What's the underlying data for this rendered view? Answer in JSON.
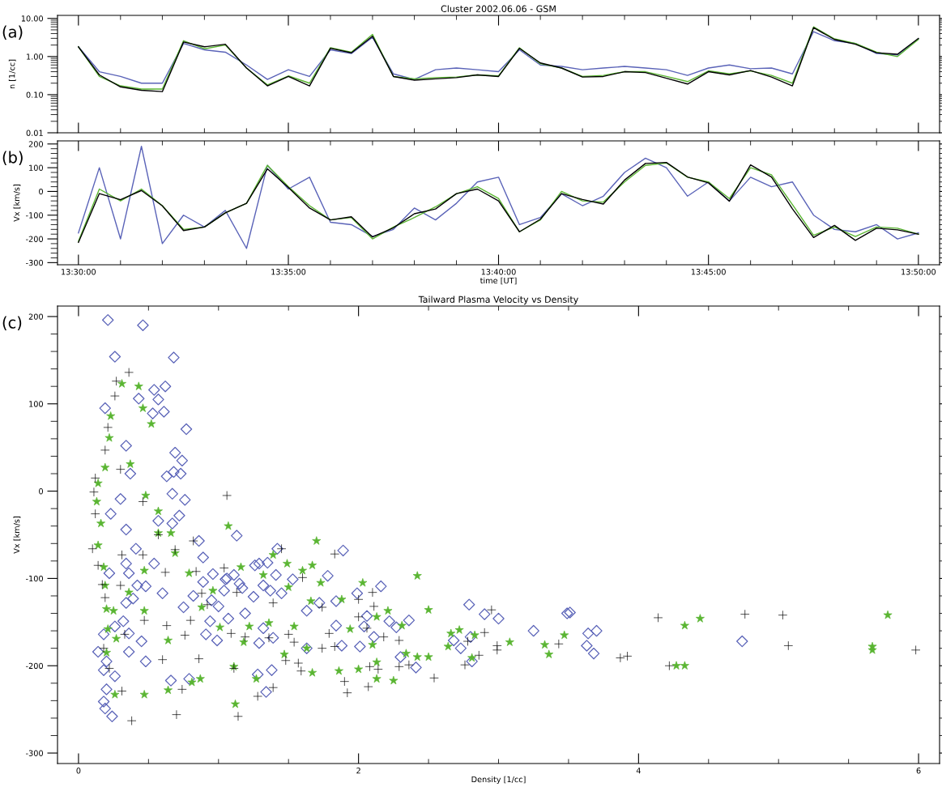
{
  "chart_data": [
    {
      "type": "line",
      "title": "Cluster 2002.06.06 - GSM",
      "ylabel": "n [1/cc]",
      "annotations": [
        "(a)"
      ],
      "log": "y",
      "tick_labels": "y",
      "x": [
        13.5,
        13.5083,
        13.5167,
        13.525,
        13.5333,
        13.5417,
        13.55,
        13.5583,
        13.5667,
        13.575,
        13.5833,
        13.5917,
        13.6,
        13.6083,
        13.6167,
        13.625,
        13.6333,
        13.6417,
        13.65,
        13.6583,
        13.6667,
        13.675,
        13.6833,
        13.6917,
        13.7,
        13.7083,
        13.7167,
        13.725,
        13.7333,
        13.7417,
        13.75,
        13.7583,
        13.7667,
        13.775,
        13.7833,
        13.7917,
        13.8,
        13.8083,
        13.8167,
        13.825,
        13.8333
      ],
      "series": [
        {
          "color": "#5a63b8",
          "values": [
            1.8,
            0.4,
            0.3,
            0.2,
            0.2,
            2.2,
            1.5,
            1.3,
            0.6,
            0.25,
            0.45,
            0.3,
            1.5,
            1.2,
            3.2,
            0.35,
            0.25,
            0.45,
            0.5,
            0.45,
            0.4,
            1.5,
            0.6,
            0.55,
            0.45,
            0.5,
            0.55,
            0.5,
            0.45,
            0.32,
            0.5,
            0.6,
            0.48,
            0.5,
            0.35,
            4.5,
            2.6,
            2.2,
            1.2,
            1.1,
            2.9
          ]
        },
        {
          "color": "#5ab532",
          "values": [
            1.8,
            0.3,
            0.17,
            0.14,
            0.14,
            2.6,
            1.6,
            2.0,
            0.5,
            0.18,
            0.31,
            0.2,
            1.7,
            1.3,
            3.8,
            0.3,
            0.26,
            0.28,
            0.29,
            0.33,
            0.31,
            1.7,
            0.65,
            0.5,
            0.3,
            0.32,
            0.4,
            0.4,
            0.3,
            0.22,
            0.42,
            0.35,
            0.42,
            0.32,
            0.2,
            6.0,
            2.9,
            2.2,
            1.3,
            1.0,
            2.8
          ]
        },
        {
          "color": "#000000",
          "values": [
            1.8,
            0.33,
            0.16,
            0.13,
            0.12,
            2.4,
            1.8,
            2.1,
            0.5,
            0.17,
            0.3,
            0.17,
            1.65,
            1.25,
            3.4,
            0.3,
            0.24,
            0.26,
            0.28,
            0.33,
            0.3,
            1.64,
            0.68,
            0.5,
            0.29,
            0.3,
            0.4,
            0.38,
            0.27,
            0.19,
            0.4,
            0.33,
            0.43,
            0.29,
            0.17,
            5.7,
            2.8,
            2.1,
            1.26,
            1.15,
            3.0
          ]
        }
      ],
      "xlim": [
        13.4917,
        13.8417
      ],
      "ylim": [
        0.01,
        12
      ],
      "xticks": [
        13.5,
        {
          "value": 13.5167,
          "label": null
        },
        {
          "value": 13.5333,
          "label": null
        },
        {
          "value": 13.55,
          "label": null
        },
        {
          "value": 13.5667,
          "label": null
        },
        13.5833,
        {
          "value": 13.6,
          "label": null
        },
        {
          "value": 13.6167,
          "label": null
        },
        {
          "value": 13.6333,
          "label": null
        },
        {
          "value": 13.65,
          "label": null
        },
        13.6667,
        {
          "value": 13.6833,
          "label": null
        },
        {
          "value": 13.7,
          "label": null
        },
        {
          "value": 13.7167,
          "label": null
        },
        {
          "value": 13.7333,
          "label": null
        },
        13.75,
        {
          "value": 13.7667,
          "label": null
        },
        {
          "value": 13.7833,
          "label": null
        },
        {
          "value": 13.8,
          "label": null
        },
        {
          "value": 13.8167,
          "label": null
        },
        13.8333
      ],
      "yticks": [
        {
          "value": 0.01,
          "label": "0.01"
        },
        {
          "value": 0.1,
          "label": "0.10"
        },
        {
          "value": 1,
          "label": "1.00"
        },
        {
          "value": 10,
          "label": "10.00"
        }
      ]
    },
    {
      "type": "line",
      "xlabel": "time [UT]",
      "ylabel": "Vx [km/s]",
      "annotations": [
        "(b)"
      ],
      "x": [
        13.5,
        13.5083,
        13.5167,
        13.525,
        13.5333,
        13.5417,
        13.55,
        13.5583,
        13.5667,
        13.575,
        13.5833,
        13.5917,
        13.6,
        13.6083,
        13.6167,
        13.625,
        13.6333,
        13.6417,
        13.65,
        13.6583,
        13.6667,
        13.675,
        13.6833,
        13.6917,
        13.7,
        13.7083,
        13.7167,
        13.725,
        13.7333,
        13.7417,
        13.75,
        13.7583,
        13.7667,
        13.775,
        13.7833,
        13.7917,
        13.8,
        13.8083,
        13.8167,
        13.825,
        13.8333
      ],
      "series": [
        {
          "color": "#5a63b8",
          "values": [
            -175,
            100,
            -200,
            190,
            -220,
            -100,
            -150,
            -80,
            -240,
            110,
            10,
            60,
            -130,
            -140,
            -190,
            -160,
            -70,
            -120,
            -50,
            40,
            60,
            -140,
            -110,
            -10,
            -60,
            -20,
            80,
            140,
            100,
            -20,
            40,
            -40,
            60,
            20,
            40,
            -100,
            -160,
            -170,
            -140,
            -200,
            -175
          ]
        },
        {
          "color": "#5ab532",
          "values": [
            -210,
            10,
            -40,
            10,
            -60,
            -160,
            -150,
            -90,
            -50,
            110,
            20,
            -60,
            -120,
            -110,
            -200,
            -150,
            -110,
            -65,
            -10,
            20,
            -30,
            -170,
            -120,
            0,
            -40,
            -45,
            40,
            110,
            120,
            60,
            40,
            -30,
            100,
            70,
            -55,
            -185,
            -150,
            -190,
            -150,
            -155,
            -180
          ]
        },
        {
          "color": "#000000",
          "values": [
            -215,
            -9,
            -35,
            4,
            -61,
            -165,
            -150,
            -90,
            -50,
            95,
            17,
            -70,
            -120,
            -107,
            -192,
            -153,
            -94,
            -74,
            -9,
            10,
            -40,
            -170,
            -117,
            -9,
            -34,
            -53,
            48,
            118,
            122,
            61,
            36,
            -41,
            112,
            61,
            -73,
            -194,
            -143,
            -206,
            -155,
            -162,
            -180
          ]
        }
      ],
      "xlim": [
        13.4917,
        13.8417
      ],
      "ylim": [
        -309,
        213
      ],
      "xticks": [
        {
          "value": 13.5,
          "label": "13:30:00"
        },
        {
          "value": 13.5167,
          "label": null
        },
        {
          "value": 13.5333,
          "label": null
        },
        {
          "value": 13.55,
          "label": null
        },
        {
          "value": 13.5667,
          "label": null
        },
        {
          "value": 13.5833,
          "label": "13:35:00"
        },
        {
          "value": 13.6,
          "label": null
        },
        {
          "value": 13.6167,
          "label": null
        },
        {
          "value": 13.6333,
          "label": null
        },
        {
          "value": 13.65,
          "label": null
        },
        {
          "value": 13.6667,
          "label": "13:40:00"
        },
        {
          "value": 13.6833,
          "label": null
        },
        {
          "value": 13.7,
          "label": null
        },
        {
          "value": 13.7167,
          "label": null
        },
        {
          "value": 13.7333,
          "label": null
        },
        {
          "value": 13.75,
          "label": "13:45:00"
        },
        {
          "value": 13.7667,
          "label": null
        },
        {
          "value": 13.7833,
          "label": null
        },
        {
          "value": 13.8,
          "label": null
        },
        {
          "value": 13.8167,
          "label": null
        },
        {
          "value": 13.8333,
          "label": "13:50:00"
        }
      ],
      "yticks": [
        -300,
        -200,
        -100,
        0,
        100,
        200
      ]
    },
    {
      "type": "scatter",
      "title": "Tailward Plasma Velocity vs Density",
      "xlabel": "Density [1/cc]",
      "ylabel": "Vx [km/s]",
      "annotations": [
        "(c)"
      ],
      "xlim": [
        -0.15,
        6.15
      ],
      "ylim": [
        -312,
        212
      ],
      "xticks": [
        0,
        2,
        4,
        6
      ],
      "yticks": [
        -300,
        -200,
        -100,
        0,
        100,
        200
      ],
      "series": [
        {
          "color": "#5a63b8",
          "marker": "diamond",
          "x": [
            0.21,
            0.46,
            0.26,
            0.68,
            0.19,
            0.62,
            0.54,
            0.57,
            0.61,
            0.77,
            0.53,
            0.43,
            0.69,
            0.74,
            0.73,
            0.68,
            0.63,
            0.67,
            0.76,
            0.72,
            0.67,
            0.57,
            0.34,
            0.37,
            0.3,
            0.23,
            0.34,
            0.41,
            0.54,
            0.34,
            0.22,
            0.36,
            0.42,
            0.48,
            0.6,
            0.34,
            0.39,
            0.32,
            0.26,
            0.18,
            0.36,
            0.14,
            0.2,
            0.18,
            0.26,
            0.2,
            0.18,
            0.19,
            0.24,
            0.36,
            0.45,
            0.48,
            0.66,
            0.79,
            0.86,
            1.13,
            0.89,
            0.96,
            0.89,
            1.05,
            1.06,
            1.11,
            1.04,
            0.82,
            0.75,
            0.95,
            1.0,
            1.07,
            0.94,
            0.91,
            0.99,
            1.15,
            1.17,
            1.25,
            1.19,
            1.26,
            1.29,
            1.35,
            1.42,
            1.41,
            1.32,
            1.37,
            1.45,
            1.53,
            1.32,
            1.29,
            1.39,
            1.28,
            1.38,
            1.34,
            1.63,
            1.63,
            1.72,
            1.78,
            1.84,
            1.89,
            1.84,
            1.88,
            1.99,
            2.06,
            2.04,
            2.01,
            2.11,
            2.16,
            2.22,
            2.27,
            2.36,
            2.3,
            2.41,
            2.79,
            2.9,
            3.0,
            2.68,
            2.73,
            2.8,
            2.81,
            3.25,
            3.49,
            3.51,
            3.64,
            3.7,
            3.63,
            3.68,
            4.74
          ],
          "values": [
            196,
            190,
            154,
            153,
            95,
            120,
            116,
            105,
            91,
            71,
            89,
            106,
            44,
            35,
            20,
            22,
            17,
            -3,
            -10,
            -28,
            -37,
            -34,
            52,
            20,
            -9,
            -26,
            -44,
            -66,
            -83,
            -83,
            -94,
            -94,
            -108,
            -109,
            -117,
            -128,
            -123,
            -149,
            -155,
            -164,
            -163,
            -184,
            -195,
            -205,
            -212,
            -227,
            -241,
            -249,
            -258,
            -184,
            -172,
            -195,
            -217,
            -215,
            -57,
            -51,
            -76,
            -95,
            -104,
            -101,
            -100,
            -96,
            -114,
            -120,
            -133,
            -125,
            -132,
            -146,
            -149,
            -164,
            -171,
            -106,
            -111,
            -121,
            -140,
            -85,
            -83,
            -82,
            -66,
            -96,
            -108,
            -114,
            -117,
            -101,
            -157,
            -174,
            -168,
            -210,
            -205,
            -230,
            -137,
            -180,
            -128,
            -97,
            -126,
            -68,
            -154,
            -177,
            -117,
            -143,
            -155,
            -178,
            -167,
            -109,
            -149,
            -156,
            -148,
            -190,
            -202,
            -130,
            -141,
            -146,
            -171,
            -180,
            -167,
            -195,
            -160,
            -140,
            -139,
            -163,
            -160,
            -177,
            -186,
            -172
          ]
        },
        {
          "color": "#5ab532",
          "marker": "star",
          "x": [
            0.31,
            0.43,
            0.23,
            0.22,
            0.19,
            0.14,
            0.13,
            0.16,
            0.14,
            0.18,
            0.19,
            0.37,
            0.46,
            0.52,
            0.48,
            0.57,
            0.66,
            0.69,
            0.47,
            0.57,
            0.36,
            0.2,
            0.25,
            0.21,
            0.27,
            0.2,
            0.26,
            0.47,
            0.47,
            0.64,
            0.64,
            0.81,
            0.87,
            1.07,
            0.79,
            0.96,
            0.88,
            1.01,
            1.16,
            1.11,
            1.12,
            1.18,
            1.22,
            1.32,
            1.27,
            1.36,
            1.39,
            1.49,
            1.47,
            1.5,
            1.54,
            1.6,
            1.67,
            1.7,
            1.73,
            1.63,
            1.67,
            1.66,
            1.88,
            1.86,
            1.94,
            2.0,
            2.03,
            2.1,
            2.13,
            2.13,
            2.13,
            2.21,
            2.25,
            2.31,
            2.34,
            2.42,
            2.42,
            2.5,
            2.5,
            2.64,
            2.66,
            2.72,
            2.83,
            3.08,
            3.33,
            3.36,
            3.47,
            2.81,
            4.27,
            4.33,
            4.33,
            4.44,
            5.67,
            5.67,
            5.78
          ],
          "values": [
            123,
            120,
            86,
            61,
            27,
            9,
            -12,
            -37,
            -62,
            -87,
            -108,
            31,
            95,
            77,
            -5,
            -23,
            -48,
            -71,
            -91,
            -48,
            -116,
            -135,
            -137,
            -158,
            -169,
            -185,
            -233,
            -233,
            -137,
            -228,
            -171,
            -219,
            -215,
            -40,
            -94,
            -114,
            -133,
            -156,
            -87,
            -201,
            -244,
            -173,
            -155,
            -96,
            -215,
            -151,
            -73,
            -83,
            -187,
            -110,
            -155,
            -91,
            -85,
            -57,
            -105,
            -180,
            -208,
            -126,
            -124,
            -206,
            -158,
            -204,
            -105,
            -176,
            -144,
            -196,
            -215,
            -137,
            -217,
            -154,
            -186,
            -190,
            -97,
            -136,
            -190,
            -178,
            -163,
            -159,
            -165,
            -173,
            -176,
            -187,
            -165,
            -191,
            -200,
            -200,
            -154,
            -146,
            -178,
            -182,
            -142
          ]
        },
        {
          "color": "#000000",
          "marker": "cross",
          "x": [
            0.36,
            0.27,
            0.26,
            0.21,
            0.19,
            0.12,
            0.11,
            0.12,
            0.1,
            0.14,
            0.17,
            0.19,
            0.3,
            0.46,
            0.46,
            0.31,
            0.57,
            0.3,
            0.33,
            0.22,
            0.18,
            0.31,
            0.38,
            0.47,
            0.62,
            0.69,
            0.82,
            1.06,
            0.84,
            1.04,
            0.88,
            0.8,
            0.63,
            0.6,
            0.76,
            0.74,
            0.7,
            0.86,
            0.92,
            1.09,
            1.14,
            1.11,
            1.19,
            1.13,
            1.28,
            1.39,
            1.36,
            1.39,
            1.45,
            1.5,
            1.54,
            1.48,
            1.57,
            1.59,
            1.6,
            1.74,
            1.74,
            1.79,
            1.83,
            1.83,
            1.9,
            1.92,
            2.0,
            2.0,
            2.06,
            2.08,
            2.07,
            2.11,
            2.14,
            2.18,
            2.29,
            2.36,
            2.54,
            2.29,
            2.1,
            2.95,
            2.9,
            2.78,
            2.76,
            2.99,
            2.99,
            2.86,
            3.43,
            3.87,
            3.92,
            4.14,
            4.22,
            4.76,
            5.03,
            5.07,
            5.98
          ],
          "values": [
            136,
            126,
            109,
            73,
            47,
            15,
            -1,
            -26,
            -66,
            -85,
            -107,
            -122,
            25,
            -12,
            -73,
            -73,
            -50,
            -108,
            -164,
            -203,
            -180,
            -229,
            -263,
            -148,
            -93,
            -67,
            -57,
            -5,
            -92,
            -88,
            -117,
            -148,
            -154,
            -193,
            -165,
            -227,
            -256,
            -192,
            -130,
            -163,
            -258,
            -203,
            -167,
            -116,
            -235,
            -225,
            -168,
            -128,
            -66,
            -164,
            -173,
            -194,
            -197,
            -206,
            -99,
            -133,
            -180,
            -163,
            -72,
            -178,
            -218,
            -231,
            -144,
            -124,
            -157,
            -201,
            -224,
            -132,
            -204,
            -167,
            -171,
            -199,
            -214,
            -201,
            -116,
            -136,
            -162,
            -172,
            -199,
            -177,
            -182,
            -188,
            -175,
            -191,
            -189,
            -145,
            -200,
            -141,
            -142,
            -177,
            -182
          ]
        }
      ]
    }
  ]
}
